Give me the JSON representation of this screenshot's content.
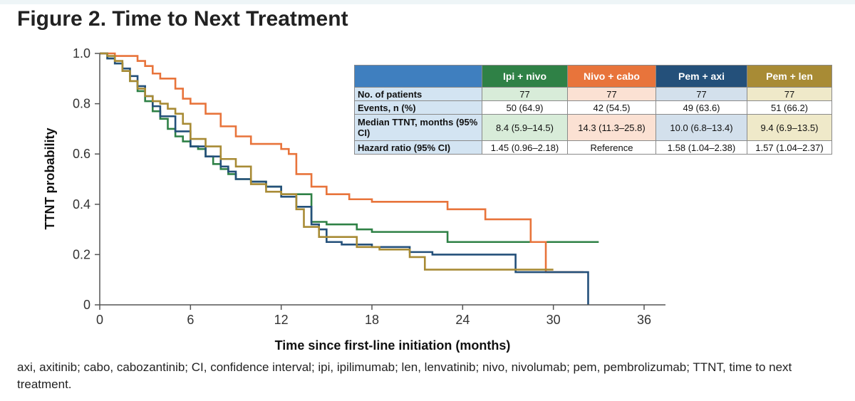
{
  "figure": {
    "title": "Figure 2. Time to Next Treatment",
    "footnote": "axi, axitinib; cabo, cabozantinib; CI, confidence interval; ipi, ipilimumab; len, lenvatinib; nivo, nivolumab; pem, pembrolizumab; TTNT, time to next treatment."
  },
  "table": {
    "arms": [
      {
        "label": "Ipi + nivo",
        "header_color": "#2f8146",
        "cell_color": "#d8ecd9"
      },
      {
        "label": "Nivo + cabo",
        "header_color": "#e8743b",
        "cell_color": "#fbe1d3"
      },
      {
        "label": "Pem + axi",
        "header_color": "#24507a",
        "cell_color": "#d3e0ec"
      },
      {
        "label": "Pem + len",
        "header_color": "#a88b35",
        "cell_color": "#efe9c9"
      }
    ],
    "corner_color": "#3f7fbf",
    "rows": [
      {
        "label": "No. of patients",
        "values": [
          "77",
          "77",
          "77",
          "77"
        ],
        "tinted": true
      },
      {
        "label": "Events, n (%)",
        "values": [
          "50 (64.9)",
          "42 (54.5)",
          "49 (63.6)",
          "51 (66.2)"
        ],
        "tinted": false
      },
      {
        "label": "Median TTNT, months (95% CI)",
        "values": [
          "8.4 (5.9–14.5)",
          "14.3 (11.3–25.8)",
          "10.0 (6.8–13.4)",
          "9.4 (6.9–13.5)"
        ],
        "tinted": true
      },
      {
        "label": "Hazard ratio (95% CI)",
        "values": [
          "1.45 (0.96–2.18)",
          "Reference",
          "1.58 (1.04–2.38)",
          "1.57 (1.04–2.37)"
        ],
        "tinted": false
      }
    ]
  },
  "chart_data": {
    "type": "line",
    "step": true,
    "xlabel": "Time since first-line initiation (months)",
    "ylabel": "TTNT probability",
    "xlim": [
      0,
      36
    ],
    "ylim": [
      0,
      1.0
    ],
    "xticks": [
      0,
      6,
      12,
      18,
      24,
      30,
      36
    ],
    "yticks": [
      {
        "value": 0,
        "label": "0"
      },
      {
        "value": 0.2,
        "label": "0.2"
      },
      {
        "value": 0.4,
        "label": "0.4"
      },
      {
        "value": 0.6,
        "label": "0.6"
      },
      {
        "value": 0.8,
        "label": "0.8"
      },
      {
        "value": 1.0,
        "label": "1.0"
      }
    ],
    "grid": false,
    "series": [
      {
        "name": "Ipi + nivo",
        "color": "#2f8146",
        "x": [
          0,
          0.5,
          1.0,
          1.5,
          2.0,
          2.5,
          3.0,
          3.5,
          4.0,
          4.5,
          5.0,
          5.5,
          6.0,
          6.5,
          7.0,
          7.5,
          8.0,
          8.5,
          9.0,
          10.0,
          11.0,
          12.0,
          14.0,
          15.0,
          17.0,
          18.0,
          23.0,
          33.0
        ],
        "y": [
          1.0,
          0.98,
          0.96,
          0.93,
          0.89,
          0.85,
          0.81,
          0.77,
          0.74,
          0.7,
          0.67,
          0.65,
          0.63,
          0.62,
          0.59,
          0.56,
          0.54,
          0.52,
          0.5,
          0.49,
          0.47,
          0.44,
          0.33,
          0.32,
          0.3,
          0.29,
          0.25,
          0.25
        ]
      },
      {
        "name": "Nivo + cabo",
        "color": "#e8743b",
        "x": [
          0,
          1.0,
          2.5,
          3.0,
          3.5,
          4.0,
          5.0,
          5.5,
          6.0,
          7.0,
          8.0,
          9.0,
          10.0,
          12.0,
          12.5,
          13.0,
          14.0,
          15.0,
          16.5,
          18.0,
          23.0,
          25.5,
          28.5,
          29.5,
          32.0
        ],
        "y": [
          1.0,
          0.99,
          0.97,
          0.95,
          0.92,
          0.9,
          0.86,
          0.82,
          0.8,
          0.76,
          0.71,
          0.67,
          0.64,
          0.62,
          0.6,
          0.52,
          0.47,
          0.44,
          0.42,
          0.41,
          0.38,
          0.34,
          0.25,
          0.13,
          0.13
        ]
      },
      {
        "name": "Pem + axi",
        "color": "#24507a",
        "x": [
          0,
          0.5,
          1.0,
          1.5,
          2.0,
          2.5,
          3.0,
          3.5,
          4.0,
          5.0,
          6.0,
          7.0,
          8.0,
          8.5,
          9.0,
          10.0,
          11.0,
          12.0,
          13.0,
          14.0,
          14.5,
          15.0,
          16.0,
          18.0,
          20.5,
          22.0,
          24.0,
          27.5,
          30.0,
          32.3
        ],
        "y": [
          1.0,
          0.98,
          0.96,
          0.94,
          0.91,
          0.87,
          0.83,
          0.79,
          0.75,
          0.69,
          0.63,
          0.59,
          0.55,
          0.53,
          0.5,
          0.49,
          0.47,
          0.43,
          0.39,
          0.32,
          0.3,
          0.25,
          0.24,
          0.23,
          0.21,
          0.2,
          0.2,
          0.13,
          0.13,
          0.0
        ]
      },
      {
        "name": "Pem + len",
        "color": "#a88b35",
        "x": [
          0,
          0.5,
          1.0,
          1.5,
          2.0,
          2.5,
          3.0,
          3.5,
          4.0,
          4.5,
          5.0,
          5.5,
          6.0,
          7.0,
          8.0,
          9.0,
          10.0,
          11.0,
          12.0,
          13.0,
          13.5,
          14.5,
          17.0,
          18.5,
          20.5,
          21.5,
          28.0,
          30.0
        ],
        "y": [
          1.0,
          0.99,
          0.97,
          0.93,
          0.89,
          0.86,
          0.83,
          0.81,
          0.8,
          0.78,
          0.76,
          0.72,
          0.66,
          0.63,
          0.58,
          0.55,
          0.48,
          0.45,
          0.44,
          0.38,
          0.31,
          0.27,
          0.23,
          0.22,
          0.19,
          0.14,
          0.14,
          0.14
        ]
      }
    ]
  }
}
